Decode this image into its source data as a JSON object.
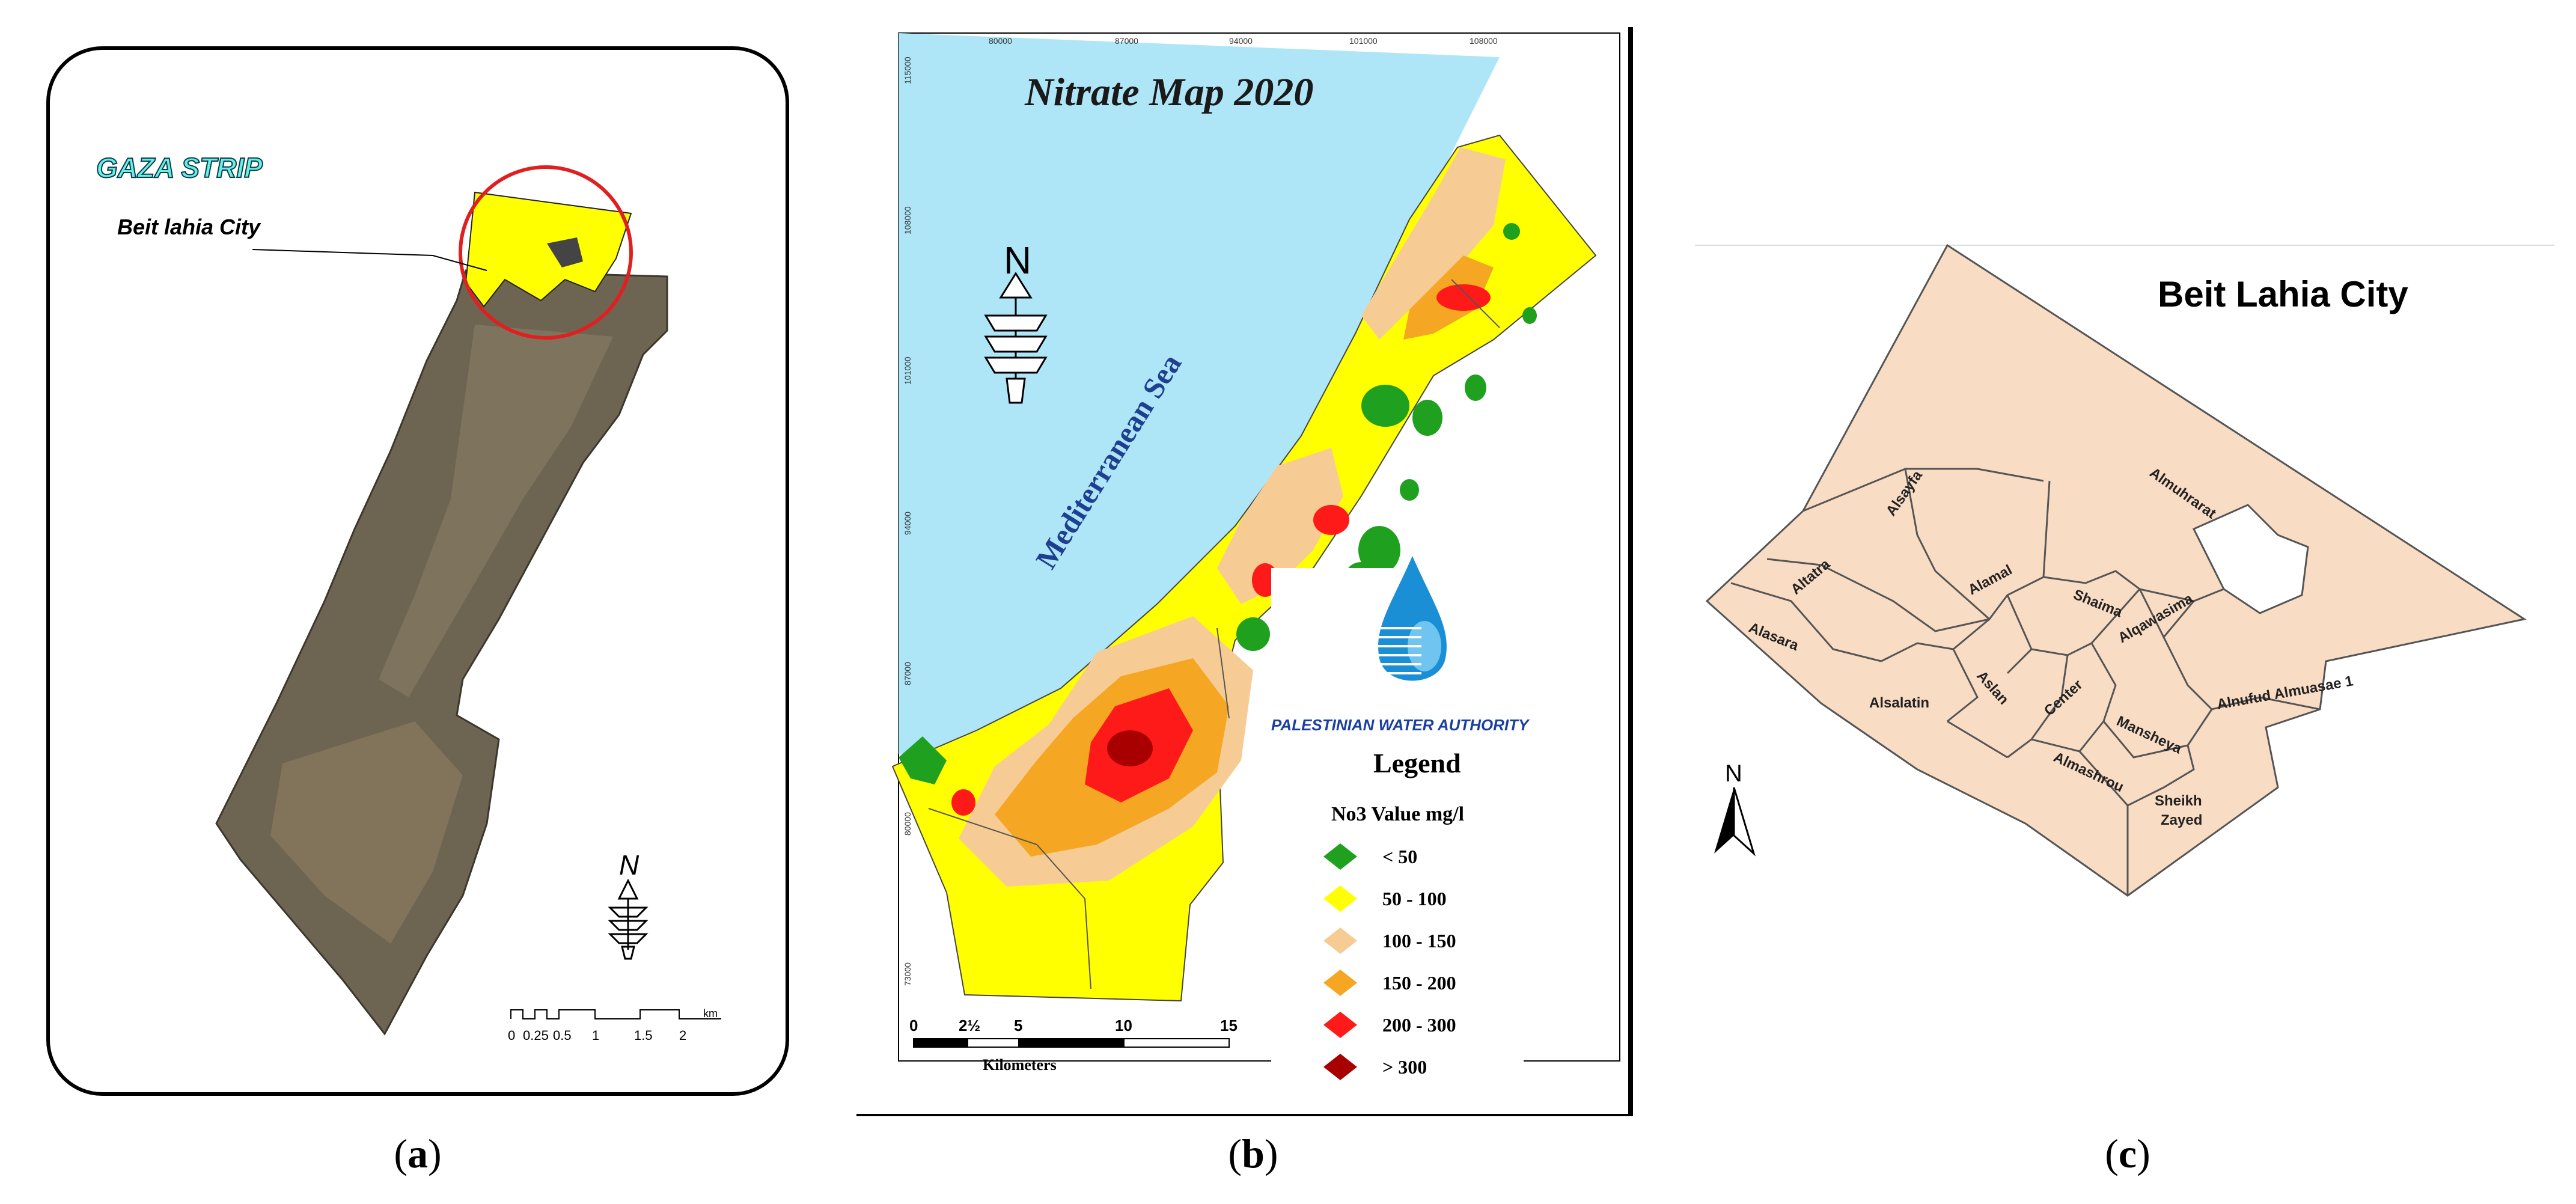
{
  "panel_a": {
    "title": "GAZA STRIP",
    "callout": "Beit lahia City",
    "north": "N",
    "scale_ticks": [
      "0",
      "0.25",
      "0.5",
      "1",
      "1.5",
      "2"
    ],
    "scale_unit": "km",
    "caption_letter": "a"
  },
  "panel_b": {
    "title": "Nitrate Map 2020",
    "sea_label": "Mediterranean Sea",
    "north": "N",
    "top_ticks": [
      "80000",
      "87000",
      "94000",
      "101000",
      "108000"
    ],
    "left_ticks": [
      "115000",
      "108000",
      "101000",
      "94000",
      "87000",
      "80000",
      "73000"
    ],
    "authority": "PALESTINIAN WATER AUTHORITY",
    "legend_title": "Legend",
    "legend_subtitle": "No3 Value mg/l",
    "legend": [
      {
        "label": "< 50",
        "color": "#1fa01f"
      },
      {
        "label": "50 - 100",
        "color": "#ffff00"
      },
      {
        "label": "100 - 150",
        "color": "#f7cc94"
      },
      {
        "label": "150 - 200",
        "color": "#f5a623"
      },
      {
        "label": "200 - 300",
        "color": "#ff1a1a"
      },
      {
        "label": "> 300",
        "color": "#a80000"
      }
    ],
    "scale_ticks": [
      "0",
      "2½",
      "5",
      "10",
      "15"
    ],
    "scale_unit": "Kilometers",
    "caption_letter": "b"
  },
  "panel_c": {
    "title": "Beit Lahia City",
    "north": "N",
    "districts": [
      "Almuhrarat",
      "Alsayfa",
      "Altatra",
      "Alasara",
      "Alamal",
      "Shaima",
      "Alqawasima",
      "Alsalatin",
      "Aslan",
      "Center",
      "Alnufud Almuasae 1",
      "Mansheya",
      "Almashrou",
      "Sheikh",
      "Zayed"
    ],
    "fill": "#f9dcc4",
    "caption_letter": "c"
  }
}
